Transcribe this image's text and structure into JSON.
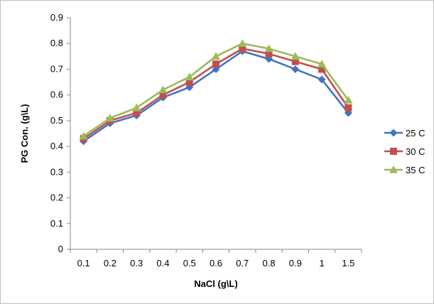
{
  "chart_data": {
    "type": "line",
    "title": "",
    "xlabel": "NaCl (g\\L)",
    "ylabel": "PG Con. (g\\L)",
    "categories": [
      "0.1",
      "0.2",
      "0.3",
      "0.4",
      "0.5",
      "0.6",
      "0.7",
      "0.8",
      "0.9",
      "1",
      "1.5"
    ],
    "ylim": [
      0,
      0.9
    ],
    "yticks": [
      "0",
      "0.1",
      "0.2",
      "0.3",
      "0.4",
      "0.5",
      "0.6",
      "0.7",
      "0.8",
      "0.9"
    ],
    "grid": false,
    "legend_position": "right",
    "series": [
      {
        "name": "25 C",
        "color": "#4472C4",
        "marker": "diamond",
        "values": [
          0.42,
          0.49,
          0.52,
          0.59,
          0.63,
          0.7,
          0.77,
          0.74,
          0.7,
          0.66,
          0.53
        ]
      },
      {
        "name": "30 C",
        "color": "#C0504D",
        "marker": "square",
        "values": [
          0.43,
          0.5,
          0.53,
          0.6,
          0.65,
          0.72,
          0.78,
          0.76,
          0.73,
          0.7,
          0.55
        ]
      },
      {
        "name": "35 C",
        "color": "#9BBB59",
        "marker": "triangle",
        "values": [
          0.44,
          0.51,
          0.55,
          0.62,
          0.67,
          0.75,
          0.8,
          0.78,
          0.75,
          0.72,
          0.58
        ]
      }
    ]
  }
}
